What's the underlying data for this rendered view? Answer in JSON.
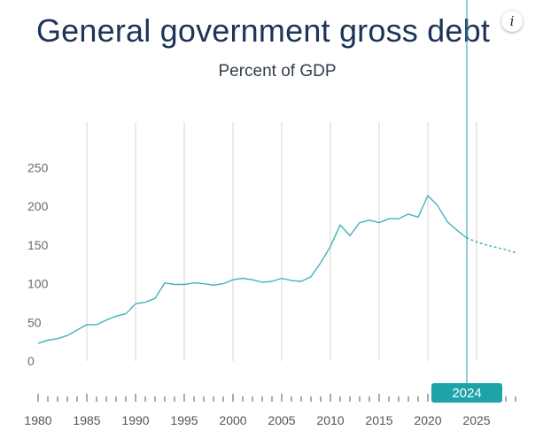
{
  "chart_data": {
    "type": "line",
    "title": "General government gross debt",
    "subtitle": "Percent of GDP",
    "xlabel": "",
    "ylabel": "",
    "xlim": [
      1980,
      2029
    ],
    "ylim": [
      0,
      250
    ],
    "yticks": [
      0,
      50,
      100,
      150,
      200,
      250
    ],
    "xticks": [
      1980,
      1985,
      1990,
      1995,
      2000,
      2005,
      2010,
      2015,
      2020,
      2025
    ],
    "grid": "vertical",
    "line_color": "#3fb4bd",
    "series": [
      {
        "style": "solid",
        "x": [
          1980,
          1981,
          1982,
          1983,
          1984,
          1985,
          1986,
          1987,
          1988,
          1989,
          1990,
          1991,
          1992,
          1993,
          1994,
          1995,
          1996,
          1997,
          1998,
          1999,
          2000,
          2001,
          2002,
          2003,
          2004,
          2005,
          2006,
          2007,
          2008,
          2009,
          2010,
          2011,
          2012,
          2013,
          2014,
          2015,
          2016,
          2017,
          2018,
          2019,
          2020,
          2021,
          2022,
          2023,
          2024
        ],
        "values": [
          23,
          27,
          29,
          33,
          40,
          47,
          47,
          53,
          58,
          61,
          74,
          76,
          81,
          101,
          99,
          99,
          101,
          100,
          98,
          100,
          105,
          107,
          105,
          102,
          103,
          107,
          104,
          103,
          109,
          127,
          148,
          176,
          162,
          179,
          182,
          179,
          184,
          184,
          190,
          186,
          214,
          201,
          180,
          169,
          159
        ]
      },
      {
        "style": "dotted",
        "x": [
          2024,
          2025,
          2026,
          2027,
          2028,
          2029
        ],
        "values": [
          159,
          154,
          150,
          147,
          144,
          140
        ]
      }
    ],
    "marker_year": "2024",
    "marker_color": "#1ca4a8"
  }
}
